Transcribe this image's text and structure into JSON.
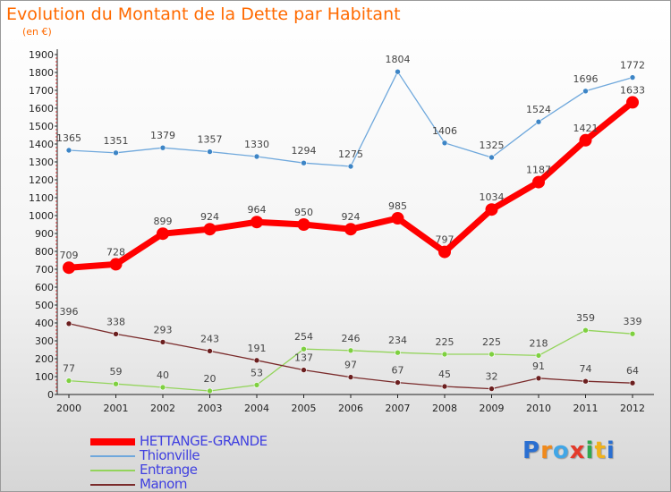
{
  "title": "Evolution du Montant de la Dette par Habitant",
  "subtitle": "(en €)",
  "logo": {
    "text": "Proxiti",
    "colors": [
      "#2a6fd1",
      "#f08a1c",
      "#41a6e6",
      "#e33a2a",
      "#2fa84f",
      "#f0b21c",
      "#2a6fd1"
    ]
  },
  "chart_data": {
    "type": "line",
    "x": [
      "2000",
      "2001",
      "2002",
      "2003",
      "2004",
      "2005",
      "2006",
      "2007",
      "2008",
      "2009",
      "2010",
      "2011",
      "2012"
    ],
    "ylim": [
      0,
      1900
    ],
    "yticks": [
      0,
      100,
      200,
      300,
      400,
      500,
      600,
      700,
      800,
      900,
      1000,
      1100,
      1200,
      1300,
      1400,
      1500,
      1600,
      1700,
      1800,
      1900
    ],
    "grid": false,
    "legend_position": "bottom-left",
    "series": [
      {
        "name": "Thionville",
        "color": "#6fa8dc",
        "marker_color": "#3d85c6",
        "width": 1.3,
        "marker": 3,
        "values": [
          1365,
          1351,
          1379,
          1357,
          1330,
          1294,
          1275,
          1804,
          1406,
          1325,
          1524,
          1696,
          1772
        ]
      },
      {
        "name": "Entrange",
        "color": "#93d45b",
        "marker_color": "#7ed040",
        "width": 1.3,
        "marker": 3,
        "values": [
          77,
          59,
          40,
          20,
          53,
          254,
          246,
          234,
          225,
          225,
          218,
          359,
          339
        ]
      },
      {
        "name": "Manom",
        "color": "#7a2b2b",
        "marker_color": "#6b1f1f",
        "width": 1.3,
        "marker": 3,
        "values": [
          396,
          338,
          293,
          243,
          191,
          137,
          97,
          67,
          45,
          32,
          91,
          74,
          64
        ]
      },
      {
        "name": "HETTANGE-GRANDE",
        "color": "#ff0000",
        "marker_color": "#ff0000",
        "width": 7,
        "marker": 7,
        "values": [
          709,
          728,
          899,
          924,
          964,
          950,
          924,
          985,
          797,
          1034,
          1187,
          1421,
          1633
        ]
      }
    ],
    "legend_order": [
      "HETTANGE-GRANDE",
      "Thionville",
      "Entrange",
      "Manom"
    ]
  }
}
